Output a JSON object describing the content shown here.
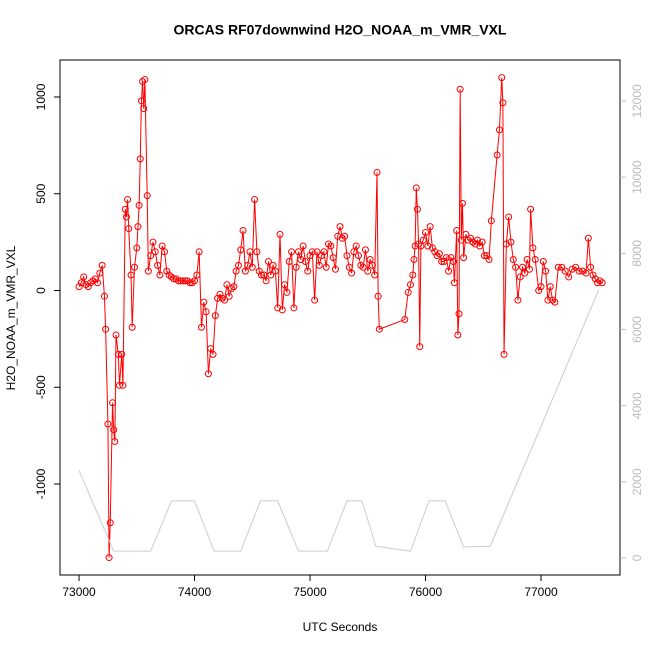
{
  "chart_data": {
    "type": "line",
    "title": "ORCAS RF07downwind H2O_NOAA_m_VMR_VXL",
    "xlabel": "UTC Seconds",
    "ylabel": "H2O_NOAA_m_VMR_VXL",
    "xlim": [
      72835,
      77684
    ],
    "ylim": [
      -1470,
      1191
    ],
    "y2lim": [
      -446,
      13077
    ],
    "xticks": [
      73000,
      74000,
      75000,
      76000,
      77000
    ],
    "yticks": [
      -1000,
      -500,
      0,
      500,
      1000
    ],
    "y2ticks": [
      0,
      2000,
      4000,
      6000,
      8000,
      10000,
      12000
    ],
    "series": [
      {
        "color": "#ff0000",
        "markers": true,
        "x": [
          73000,
          73020,
          73040,
          73060,
          73080,
          73100,
          73120,
          73140,
          73160,
          73180,
          73200,
          73220,
          73230,
          73250,
          73260,
          73270,
          73290,
          73300,
          73310,
          73320,
          73340,
          73350,
          73370,
          73380,
          73400,
          73410,
          73420,
          73430,
          73450,
          73460,
          73480,
          73500,
          73510,
          73520,
          73530,
          73540,
          73550,
          73560,
          73570,
          73590,
          73600,
          73620,
          73640,
          73660,
          73680,
          73700,
          73720,
          73740,
          73760,
          73780,
          73800,
          73820,
          73840,
          73860,
          73880,
          73900,
          73920,
          73940,
          73960,
          73980,
          74000,
          74020,
          74040,
          74060,
          74080,
          74100,
          74120,
          74140,
          74160,
          74180,
          74200,
          74220,
          74240,
          74260,
          74280,
          74300,
          74320,
          74340,
          74360,
          74380,
          74400,
          74420,
          74440,
          74460,
          74480,
          74500,
          74520,
          74540,
          74560,
          74580,
          74600,
          74620,
          74640,
          74660,
          74680,
          74700,
          74720,
          74740,
          74760,
          74780,
          74800,
          74820,
          74840,
          74860,
          74880,
          74900,
          74920,
          74940,
          74960,
          74980,
          75000,
          75020,
          75040,
          75060,
          75080,
          75100,
          75120,
          75140,
          75160,
          75180,
          75200,
          75220,
          75240,
          75260,
          75280,
          75300,
          75320,
          75340,
          75360,
          75380,
          75400,
          75420,
          75440,
          75460,
          75480,
          75500,
          75520,
          75540,
          75560,
          75580,
          75590,
          75600,
          75820,
          75850,
          75870,
          75890,
          75900,
          75910,
          75920,
          75930,
          75940,
          75950,
          75960,
          75980,
          76000,
          76020,
          76040,
          76060,
          76080,
          76100,
          76120,
          76140,
          76160,
          76180,
          76200,
          76220,
          76240,
          76250,
          76270,
          76280,
          76290,
          76300,
          76310,
          76320,
          76330,
          76350,
          76370,
          76390,
          76410,
          76430,
          76450,
          76470,
          76490,
          76510,
          76530,
          76550,
          76570,
          76620,
          76640,
          76660,
          76670,
          76680,
          76700,
          76720,
          76740,
          76760,
          76780,
          76800,
          76820,
          76840,
          76860,
          76880,
          76900,
          76910,
          76930,
          76950,
          76980,
          77000,
          77020,
          77040,
          77060,
          77080,
          77100,
          77120,
          77150,
          77180,
          77210,
          77240,
          77270,
          77300,
          77330,
          77360,
          77390,
          77410,
          77430,
          77450,
          77470,
          77490,
          77510,
          77530
        ],
        "values": [
          20,
          40,
          70,
          30,
          20,
          40,
          50,
          60,
          40,
          90,
          130,
          -30,
          -200,
          -690,
          -1380,
          -1200,
          -580,
          -720,
          -780,
          -230,
          -330,
          -490,
          -330,
          -490,
          420,
          380,
          470,
          320,
          80,
          -190,
          120,
          220,
          330,
          440,
          680,
          980,
          1080,
          940,
          1090,
          490,
          100,
          180,
          250,
          200,
          130,
          80,
          230,
          200,
          100,
          80,
          70,
          60,
          60,
          50,
          50,
          50,
          50,
          50,
          40,
          40,
          50,
          80,
          200,
          -190,
          -60,
          -110,
          -430,
          -300,
          -330,
          -130,
          -40,
          -20,
          -40,
          -50,
          30,
          -30,
          10,
          20,
          100,
          130,
          210,
          310,
          100,
          130,
          200,
          120,
          470,
          200,
          100,
          80,
          80,
          50,
          150,
          80,
          130,
          100,
          -90,
          290,
          -100,
          30,
          -10,
          150,
          200,
          -90,
          120,
          200,
          160,
          230,
          150,
          100,
          180,
          200,
          -50,
          200,
          130,
          180,
          200,
          120,
          240,
          230,
          170,
          110,
          280,
          330,
          270,
          280,
          180,
          120,
          90,
          200,
          230,
          180,
          130,
          120,
          210,
          100,
          160,
          130,
          80,
          610,
          -30,
          -200,
          -150,
          -10,
          30,
          80,
          160,
          230,
          530,
          420,
          240,
          -290,
          230,
          260,
          300,
          230,
          330,
          220,
          200,
          180,
          190,
          150,
          150,
          170,
          100,
          170,
          150,
          40,
          310,
          -230,
          -120,
          1040,
          260,
          450,
          170,
          290,
          260,
          270,
          250,
          240,
          260,
          230,
          250,
          180,
          180,
          160,
          360,
          700,
          830,
          1100,
          970,
          -330,
          240,
          380,
          250,
          160,
          120,
          -50,
          70,
          120,
          90,
          160,
          110,
          420,
          220,
          160,
          0,
          20,
          150,
          100,
          -50,
          20,
          -50,
          -60,
          120,
          120,
          100,
          70,
          110,
          120,
          100,
          100,
          90,
          270,
          120,
          80,
          60,
          40,
          50,
          40
        ]
      },
      {
        "color": "#cccccc",
        "axis": "y2",
        "x": [
          73000,
          73300,
          73620,
          73800,
          74000,
          74170,
          74400,
          74570,
          74720,
          74900,
          75150,
          75320,
          75450,
          75570,
          75870,
          76030,
          76170,
          76330,
          76560,
          77500
        ],
        "values": [
          2300,
          180,
          180,
          1500,
          1500,
          180,
          180,
          1500,
          1500,
          180,
          180,
          1500,
          1500,
          310,
          180,
          1500,
          1500,
          290,
          310,
          7040
        ]
      }
    ]
  }
}
